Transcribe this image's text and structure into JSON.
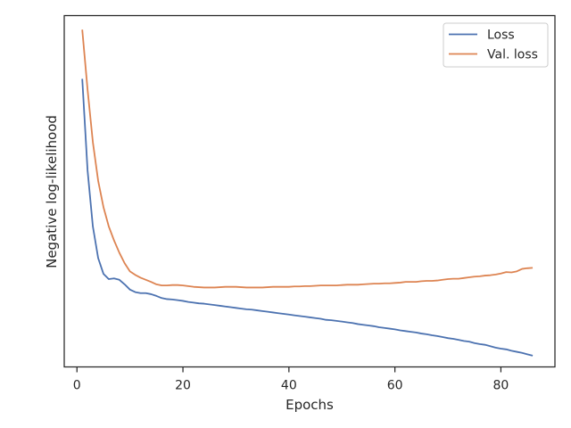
{
  "chart_data": {
    "type": "line",
    "xlabel": "Epochs",
    "ylabel": "Negative log-likelihood",
    "xlim": [
      -2.4,
      90.2
    ],
    "xticks": [
      0,
      20,
      40,
      60,
      80
    ],
    "ylim": [
      0.0,
      1.0
    ],
    "yticks_shown": false,
    "grid": false,
    "legend": "upper-right",
    "series": [
      {
        "name": "Loss",
        "color": "#4c72b0",
        "x": [
          1,
          2,
          3,
          4,
          5,
          6,
          7,
          8,
          9,
          10,
          11,
          12,
          13,
          14,
          15,
          16,
          17,
          18,
          19,
          20,
          21,
          22,
          23,
          24,
          25,
          26,
          27,
          28,
          29,
          30,
          31,
          32,
          33,
          34,
          35,
          36,
          37,
          38,
          39,
          40,
          41,
          42,
          43,
          44,
          45,
          46,
          47,
          48,
          49,
          50,
          51,
          52,
          53,
          54,
          55,
          56,
          57,
          58,
          59,
          60,
          61,
          62,
          63,
          64,
          65,
          66,
          67,
          68,
          69,
          70,
          71,
          72,
          73,
          74,
          75,
          76,
          77,
          78,
          79,
          80,
          81,
          82,
          83,
          84,
          85,
          86
        ],
        "values": [
          0.82,
          0.56,
          0.4,
          0.31,
          0.265,
          0.25,
          0.252,
          0.248,
          0.235,
          0.22,
          0.213,
          0.21,
          0.21,
          0.207,
          0.202,
          0.196,
          0.193,
          0.192,
          0.19,
          0.188,
          0.185,
          0.183,
          0.181,
          0.18,
          0.178,
          0.176,
          0.174,
          0.172,
          0.17,
          0.168,
          0.166,
          0.164,
          0.163,
          0.161,
          0.159,
          0.157,
          0.155,
          0.153,
          0.151,
          0.149,
          0.147,
          0.145,
          0.143,
          0.141,
          0.139,
          0.137,
          0.134,
          0.133,
          0.131,
          0.129,
          0.127,
          0.125,
          0.122,
          0.12,
          0.118,
          0.116,
          0.113,
          0.111,
          0.109,
          0.107,
          0.104,
          0.102,
          0.1,
          0.098,
          0.095,
          0.093,
          0.09,
          0.088,
          0.085,
          0.082,
          0.08,
          0.077,
          0.074,
          0.072,
          0.068,
          0.065,
          0.063,
          0.059,
          0.055,
          0.052,
          0.05,
          0.046,
          0.043,
          0.04,
          0.036,
          0.032
        ]
      },
      {
        "name": "Val. loss",
        "color": "#dd8452",
        "x": [
          1,
          2,
          3,
          4,
          5,
          6,
          7,
          8,
          9,
          10,
          11,
          12,
          13,
          14,
          15,
          16,
          17,
          18,
          19,
          20,
          21,
          22,
          23,
          24,
          25,
          26,
          27,
          28,
          29,
          30,
          31,
          32,
          33,
          34,
          35,
          36,
          37,
          38,
          39,
          40,
          41,
          42,
          43,
          44,
          45,
          46,
          47,
          48,
          49,
          50,
          51,
          52,
          53,
          54,
          55,
          56,
          57,
          58,
          59,
          60,
          61,
          62,
          63,
          64,
          65,
          66,
          67,
          68,
          69,
          70,
          71,
          72,
          73,
          74,
          75,
          76,
          77,
          78,
          79,
          80,
          81,
          82,
          83,
          84,
          85,
          86
        ],
        "values": [
          0.96,
          0.79,
          0.64,
          0.53,
          0.455,
          0.4,
          0.36,
          0.325,
          0.295,
          0.272,
          0.262,
          0.254,
          0.248,
          0.242,
          0.235,
          0.232,
          0.232,
          0.233,
          0.233,
          0.232,
          0.23,
          0.228,
          0.227,
          0.226,
          0.226,
          0.226,
          0.227,
          0.228,
          0.228,
          0.228,
          0.227,
          0.226,
          0.226,
          0.226,
          0.226,
          0.227,
          0.228,
          0.228,
          0.228,
          0.228,
          0.229,
          0.229,
          0.23,
          0.23,
          0.231,
          0.232,
          0.232,
          0.232,
          0.232,
          0.233,
          0.234,
          0.234,
          0.234,
          0.235,
          0.236,
          0.237,
          0.237,
          0.238,
          0.238,
          0.239,
          0.24,
          0.242,
          0.242,
          0.242,
          0.244,
          0.245,
          0.245,
          0.246,
          0.248,
          0.25,
          0.251,
          0.251,
          0.253,
          0.255,
          0.257,
          0.258,
          0.26,
          0.261,
          0.263,
          0.266,
          0.27,
          0.269,
          0.272,
          0.279,
          0.281,
          0.282
        ]
      }
    ]
  }
}
